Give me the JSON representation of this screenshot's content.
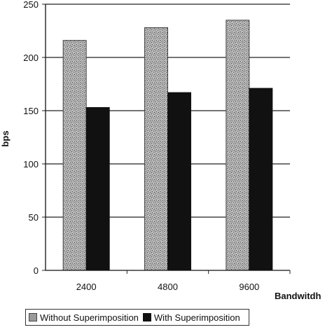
{
  "chart_data": {
    "type": "bar",
    "categories": [
      "2400",
      "4800",
      "9600"
    ],
    "series": [
      {
        "name": "Without Superimposition",
        "values": [
          216,
          228,
          235
        ],
        "color": "#9a9a9a",
        "pattern": "stipple"
      },
      {
        "name": "With Superimposition",
        "values": [
          153,
          167,
          171
        ],
        "color": "#111111",
        "pattern": "solid"
      }
    ],
    "title": "",
    "xlabel": "Bandwitdh",
    "ylabel": "bps",
    "ylim": [
      0,
      250
    ],
    "yticks": [
      "0",
      "50",
      "100",
      "150",
      "200",
      "250"
    ],
    "grid": true,
    "legend_position": "bottom"
  }
}
